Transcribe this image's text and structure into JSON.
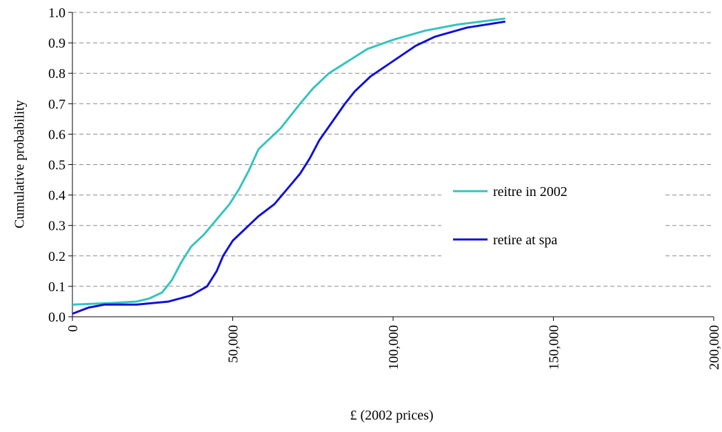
{
  "chart_data": {
    "type": "line",
    "xlabel": "£ (2002 prices)",
    "ylabel": "Cumulative probability",
    "xlim": [
      0,
      200000
    ],
    "xticks": [
      0,
      {
        "value": 50000,
        "label": "50,000"
      },
      {
        "value": 100000,
        "label": "100,000"
      },
      {
        "value": 150000,
        "label": "150,000"
      },
      {
        "value": 200000,
        "label": "200,000"
      }
    ],
    "ylim": [
      0,
      1
    ],
    "yticks": [
      {
        "value": 0,
        "label": "0.0"
      },
      0.1,
      0.2,
      0.3,
      0.4,
      0.5,
      0.6,
      0.7,
      0.8,
      0.9,
      {
        "value": 1,
        "label": "1.0"
      }
    ],
    "grid": true,
    "legend": "right",
    "series": [
      {
        "name": "reitre in 2002",
        "color": "#33c3c0",
        "x": [
          0,
          12000,
          20000,
          24000,
          28000,
          31000,
          34000,
          37000,
          41000,
          45000,
          49000,
          52000,
          55000,
          58000,
          61000,
          65000,
          68000,
          71000,
          75000,
          80000,
          86000,
          92000,
          100000,
          110000,
          120000,
          135000
        ],
        "values": [
          0.04,
          0.045,
          0.05,
          0.06,
          0.08,
          0.12,
          0.18,
          0.23,
          0.27,
          0.32,
          0.37,
          0.42,
          0.48,
          0.55,
          0.58,
          0.62,
          0.66,
          0.7,
          0.75,
          0.8,
          0.84,
          0.88,
          0.91,
          0.94,
          0.96,
          0.98
        ]
      },
      {
        "name": "retire at spa",
        "color": "#1010d8",
        "x": [
          0,
          5000,
          10000,
          20000,
          30000,
          37000,
          42000,
          45000,
          47000,
          50000,
          54000,
          58000,
          63000,
          67000,
          71000,
          74000,
          77000,
          81000,
          85000,
          88000,
          93000,
          100000,
          107000,
          113000,
          123000,
          135000
        ],
        "values": [
          0.01,
          0.03,
          0.04,
          0.04,
          0.05,
          0.07,
          0.1,
          0.15,
          0.2,
          0.25,
          0.29,
          0.33,
          0.37,
          0.42,
          0.47,
          0.52,
          0.58,
          0.64,
          0.7,
          0.74,
          0.79,
          0.84,
          0.89,
          0.92,
          0.95,
          0.97
        ]
      }
    ]
  }
}
